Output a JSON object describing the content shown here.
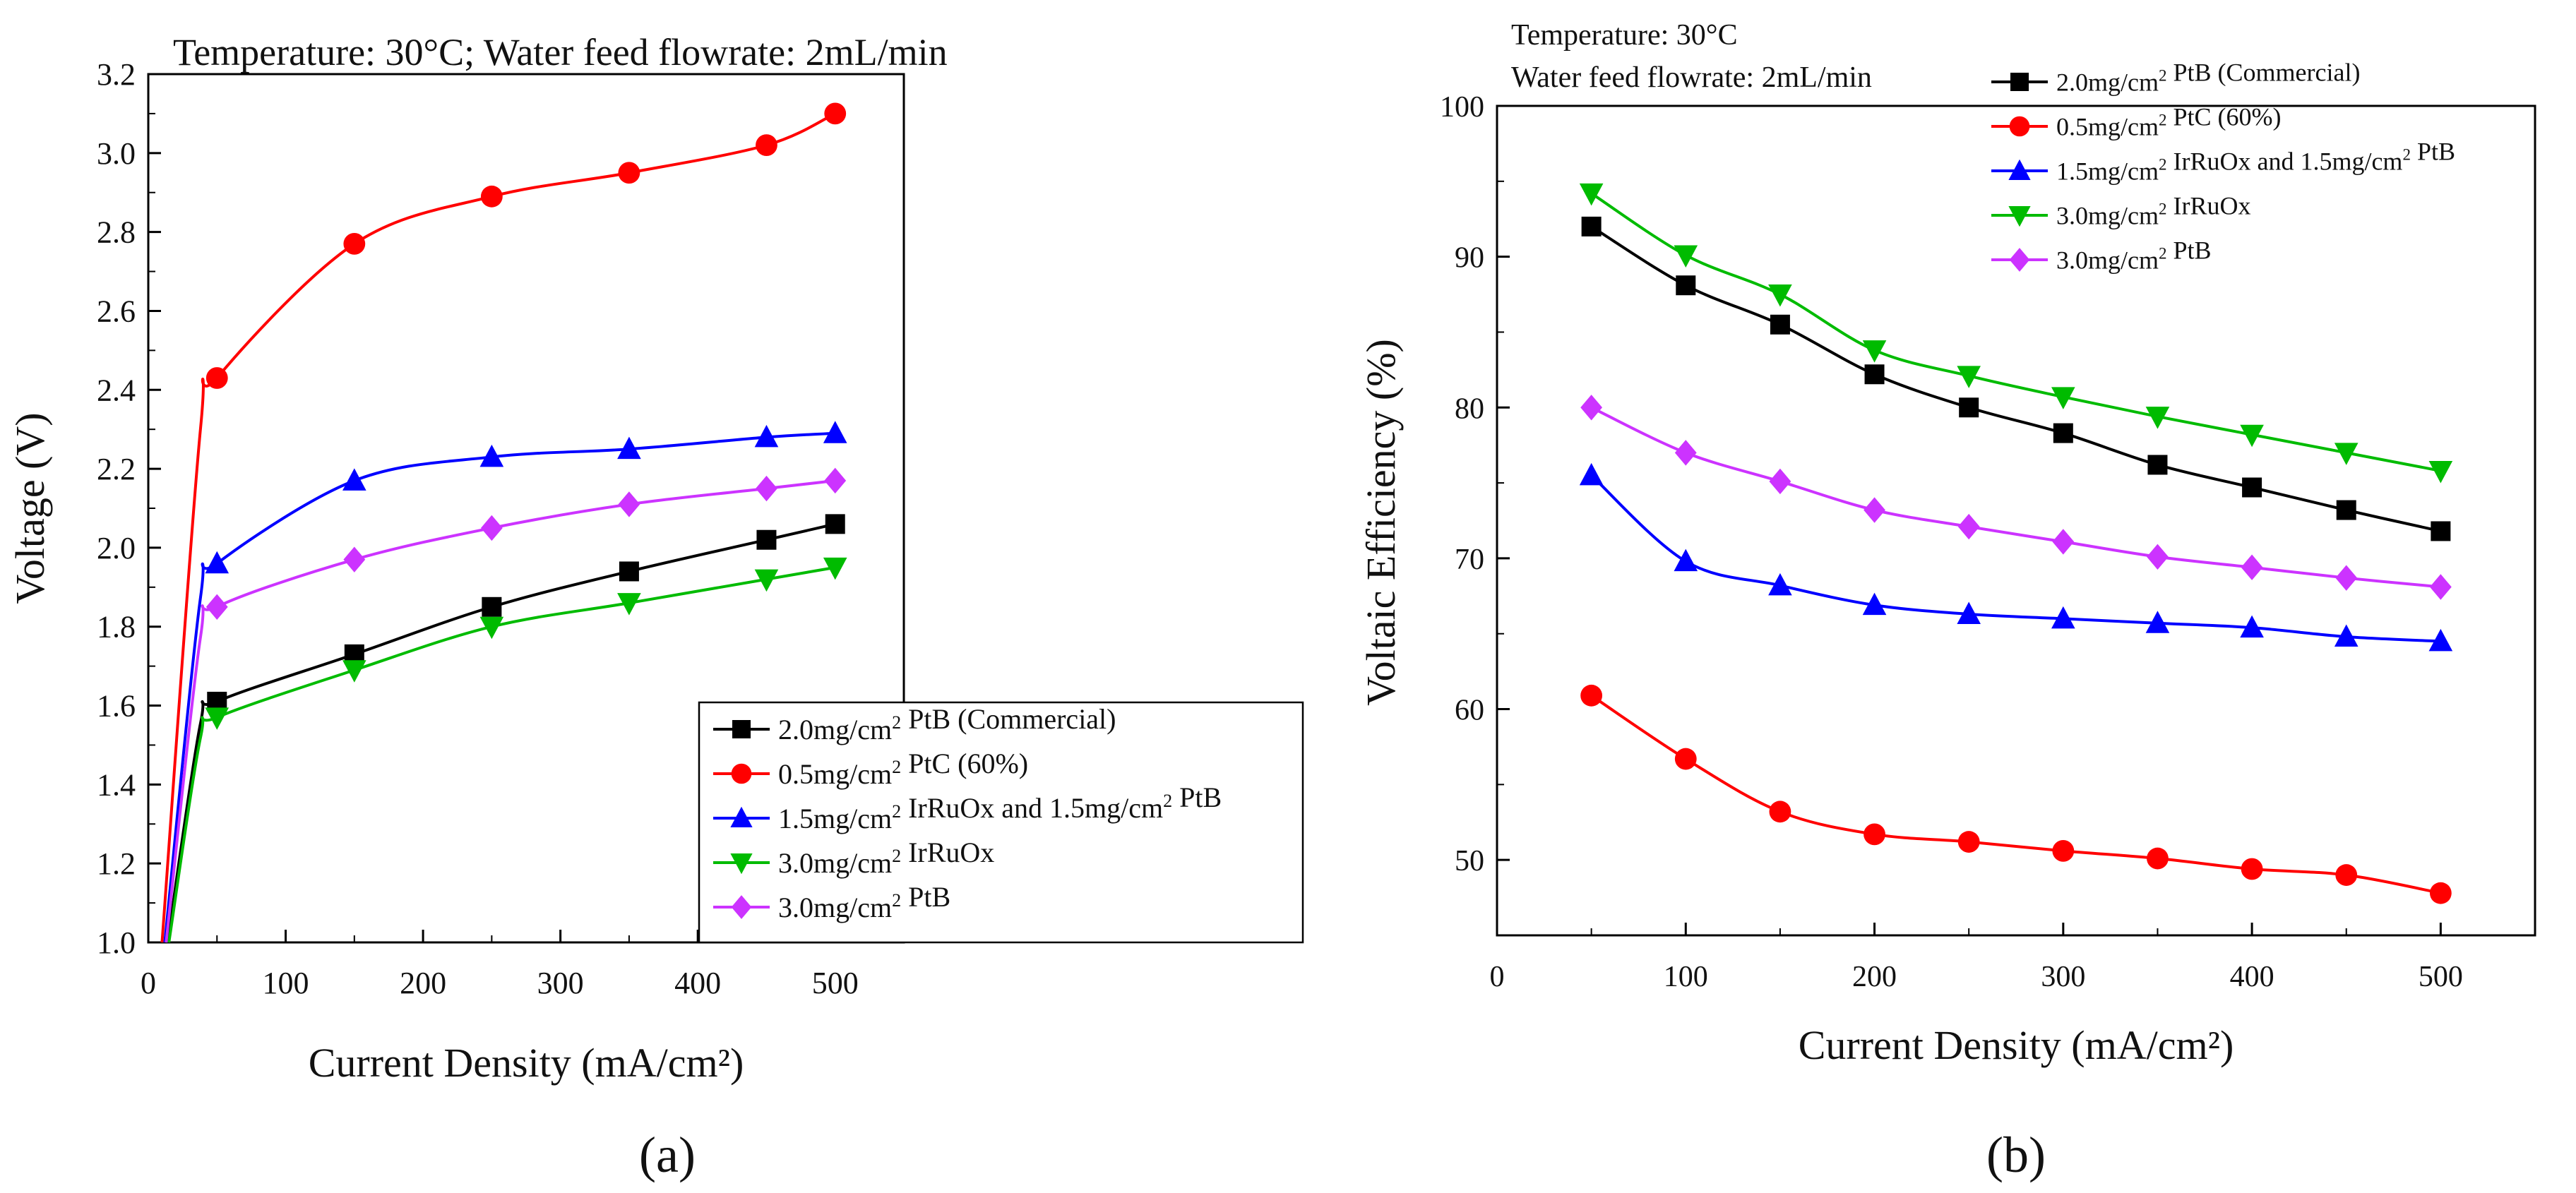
{
  "figure": {
    "caption_a": "(a)",
    "caption_b": "(b)"
  },
  "chart_data": [
    {
      "panel": "a",
      "type": "line",
      "annotation": "Temperature:  30°C; Water feed flowrate:  2mL/min",
      "xlabel": "Current Density (mA/cm²)",
      "ylabel": "Voltage (V)",
      "xlim": [
        0,
        550
      ],
      "ylim": [
        1.0,
        3.2
      ],
      "xticks": [
        0,
        100,
        200,
        300,
        400,
        500
      ],
      "yticks": [
        1.0,
        1.2,
        1.4,
        1.6,
        1.8,
        2.0,
        2.2,
        2.4,
        2.6,
        2.8,
        3.0,
        3.2
      ],
      "grid": false,
      "legend_position": "bottom-right",
      "series": [
        {
          "name": "2.0mg/cm² PtB (Commercial)",
          "color": "#000000",
          "marker": "square",
          "curve_start": [
            14,
            1.0
          ],
          "x": [
            50,
            150,
            250,
            350,
            450,
            500
          ],
          "y": [
            1.61,
            1.73,
            1.85,
            1.94,
            2.02,
            2.06
          ]
        },
        {
          "name": "0.5mg/cm² PtC (60%)",
          "color": "#ff0000",
          "marker": "circle",
          "curve_start": [
            10,
            1.0
          ],
          "x": [
            50,
            150,
            250,
            350,
            450,
            500
          ],
          "y": [
            2.43,
            2.77,
            2.89,
            2.95,
            3.02,
            3.1
          ]
        },
        {
          "name": "1.5mg/cm² IrRuOx and 1.5mg/cm² PtB",
          "color": "#0000ff",
          "marker": "triangle-up",
          "curve_start": [
            12,
            1.0
          ],
          "x": [
            50,
            150,
            250,
            350,
            450,
            500
          ],
          "y": [
            1.96,
            2.17,
            2.23,
            2.25,
            2.28,
            2.29
          ]
        },
        {
          "name": "3.0mg/cm² IrRuOx",
          "color": "#00bb00",
          "marker": "triangle-down",
          "curve_start": [
            15,
            1.0
          ],
          "x": [
            50,
            150,
            250,
            350,
            450,
            500
          ],
          "y": [
            1.57,
            1.69,
            1.8,
            1.86,
            1.92,
            1.95
          ]
        },
        {
          "name": "3.0mg/cm² PtB",
          "color": "#cc33ff",
          "marker": "diamond",
          "curve_start": [
            13,
            1.0
          ],
          "x": [
            50,
            150,
            250,
            350,
            450,
            500
          ],
          "y": [
            1.85,
            1.97,
            2.05,
            2.11,
            2.15,
            2.17
          ]
        }
      ]
    },
    {
      "panel": "b",
      "type": "line",
      "annotation_lines": [
        "Temperature:  30°C",
        "Water feed flowrate: 2mL/min"
      ],
      "xlabel": "Current Density (mA/cm²)",
      "ylabel": "Voltaic Efficiency (%)",
      "xlim": [
        0,
        550
      ],
      "ylim": [
        45,
        100
      ],
      "xticks": [
        0,
        100,
        200,
        300,
        400,
        500
      ],
      "yticks": [
        50,
        60,
        70,
        80,
        90,
        100
      ],
      "grid": false,
      "legend_position": "top-right",
      "series": [
        {
          "name": "2.0mg/cm² PtB (Commercial)",
          "color": "#000000",
          "marker": "square",
          "x": [
            50,
            100,
            150,
            200,
            250,
            300,
            350,
            400,
            450,
            500
          ],
          "y": [
            92.0,
            88.1,
            85.5,
            82.2,
            80.0,
            78.3,
            76.2,
            74.7,
            73.2,
            71.8
          ]
        },
        {
          "name": "0.5mg/cm² PtC (60%)",
          "color": "#ff0000",
          "marker": "circle",
          "x": [
            50,
            100,
            150,
            200,
            250,
            300,
            350,
            400,
            450,
            500
          ],
          "y": [
            60.9,
            56.7,
            53.2,
            51.7,
            51.2,
            50.6,
            50.1,
            49.4,
            49.0,
            47.8
          ]
        },
        {
          "name": "1.5mg/cm² IrRuOx and 1.5mg/cm² PtB",
          "color": "#0000ff",
          "marker": "triangle-up",
          "x": [
            50,
            100,
            150,
            200,
            250,
            300,
            350,
            400,
            450,
            500
          ],
          "y": [
            75.5,
            69.8,
            68.2,
            66.9,
            66.3,
            66.0,
            65.7,
            65.4,
            64.8,
            64.5
          ]
        },
        {
          "name": "3.0mg/cm² IrRuOx",
          "color": "#00bb00",
          "marker": "triangle-down",
          "x": [
            50,
            100,
            150,
            200,
            250,
            300,
            350,
            400,
            450,
            500
          ],
          "y": [
            94.2,
            90.1,
            87.5,
            83.8,
            82.1,
            80.7,
            79.4,
            78.2,
            77.0,
            75.8
          ]
        },
        {
          "name": "3.0mg/cm² PtB",
          "color": "#cc33ff",
          "marker": "diamond",
          "x": [
            50,
            100,
            150,
            200,
            250,
            300,
            350,
            400,
            450,
            500
          ],
          "y": [
            80.0,
            77.0,
            75.1,
            73.2,
            72.1,
            71.1,
            70.1,
            69.4,
            68.7,
            68.1
          ]
        }
      ]
    }
  ]
}
